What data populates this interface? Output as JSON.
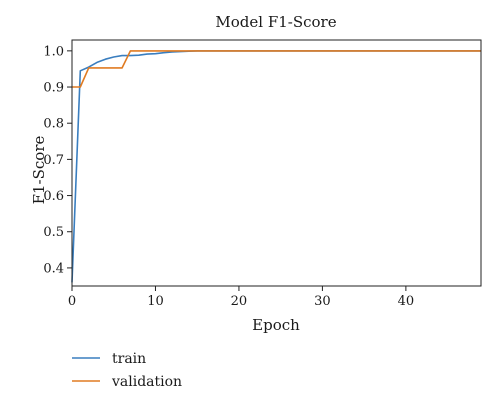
{
  "chart_data": {
    "type": "line",
    "title": "Model F1-Score",
    "xlabel": "Epoch",
    "ylabel": "F1-Score",
    "xlim": [
      0,
      49
    ],
    "ylim": [
      0.35,
      1.03
    ],
    "xticks": [
      0,
      10,
      20,
      30,
      40
    ],
    "yticks": [
      0.4,
      0.5,
      0.6,
      0.7,
      0.8,
      0.9,
      1.0
    ],
    "x_tick_labels": [
      "0",
      "10",
      "20",
      "30",
      "40"
    ],
    "y_tick_labels": [
      "0.4",
      "0.5",
      "0.6",
      "0.7",
      "0.8",
      "0.9",
      "1.0"
    ],
    "grid": false,
    "legend_position": "bottom-left",
    "series": [
      {
        "name": "train",
        "color": "#3a7ebf",
        "x": [
          0,
          1,
          2,
          3,
          4,
          5,
          6,
          7,
          8,
          9,
          10,
          11,
          12,
          13,
          14,
          15,
          16,
          17,
          18,
          19,
          20,
          21,
          22,
          23,
          24,
          25,
          26,
          27,
          28,
          29,
          30,
          31,
          32,
          33,
          34,
          35,
          36,
          37,
          38,
          39,
          40,
          41,
          42,
          43,
          44,
          45,
          46,
          47,
          48,
          49
        ],
        "y": [
          0.36,
          0.945,
          0.955,
          0.968,
          0.977,
          0.983,
          0.987,
          0.987,
          0.988,
          0.991,
          0.992,
          0.995,
          0.997,
          0.998,
          0.999,
          1.0,
          1.0,
          1.0,
          1.0,
          1.0,
          1.0,
          1.0,
          1.0,
          1.0,
          1.0,
          1.0,
          1.0,
          1.0,
          1.0,
          1.0,
          1.0,
          1.0,
          1.0,
          1.0,
          1.0,
          1.0,
          1.0,
          1.0,
          1.0,
          1.0,
          1.0,
          1.0,
          1.0,
          1.0,
          1.0,
          1.0,
          1.0,
          1.0,
          1.0,
          1.0
        ]
      },
      {
        "name": "validation",
        "color": "#e07b22",
        "x": [
          0,
          1,
          2,
          3,
          4,
          5,
          6,
          7,
          8,
          9,
          10,
          11,
          12,
          13,
          14,
          15,
          16,
          17,
          18,
          19,
          20,
          21,
          22,
          23,
          24,
          25,
          26,
          27,
          28,
          29,
          30,
          31,
          32,
          33,
          34,
          35,
          36,
          37,
          38,
          39,
          40,
          41,
          42,
          43,
          44,
          45,
          46,
          47,
          48,
          49
        ],
        "y": [
          0.9,
          0.9,
          0.953,
          0.953,
          0.953,
          0.953,
          0.953,
          1.0,
          1.0,
          1.0,
          1.0,
          1.0,
          1.0,
          1.0,
          1.0,
          1.0,
          1.0,
          1.0,
          1.0,
          1.0,
          1.0,
          1.0,
          1.0,
          1.0,
          1.0,
          1.0,
          1.0,
          1.0,
          1.0,
          1.0,
          1.0,
          1.0,
          1.0,
          1.0,
          1.0,
          1.0,
          1.0,
          1.0,
          1.0,
          1.0,
          1.0,
          1.0,
          1.0,
          1.0,
          1.0,
          1.0,
          1.0,
          1.0,
          1.0,
          1.0
        ]
      }
    ]
  }
}
